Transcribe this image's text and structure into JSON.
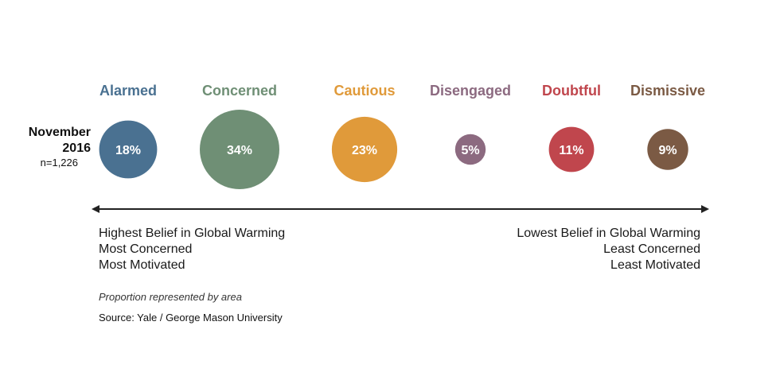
{
  "chart_data": {
    "type": "bubble",
    "title": "",
    "row_label": {
      "line1": "November",
      "line2": "2016",
      "line3": "n=1,226"
    },
    "categories": [
      "Alarmed",
      "Concerned",
      "Cautious",
      "Disengaged",
      "Doubtful",
      "Dismissive"
    ],
    "values": [
      18,
      34,
      23,
      5,
      11,
      9
    ],
    "value_labels": [
      "18%",
      "34%",
      "23%",
      "5%",
      "11%",
      "9%"
    ],
    "colors": [
      "#4a7191",
      "#6f8f75",
      "#e09a3a",
      "#8c6a80",
      "#c0464d",
      "#7b5a44"
    ],
    "axis": {
      "left": [
        "Highest Belief in Global Warming",
        "Most Concerned",
        "Most Motivated"
      ],
      "right": [
        "Lowest Belief in Global Warming",
        "Least Concerned",
        "Least Motivated"
      ]
    },
    "note": "Proportion represented by area",
    "source": "Source: Yale / George Mason University"
  }
}
